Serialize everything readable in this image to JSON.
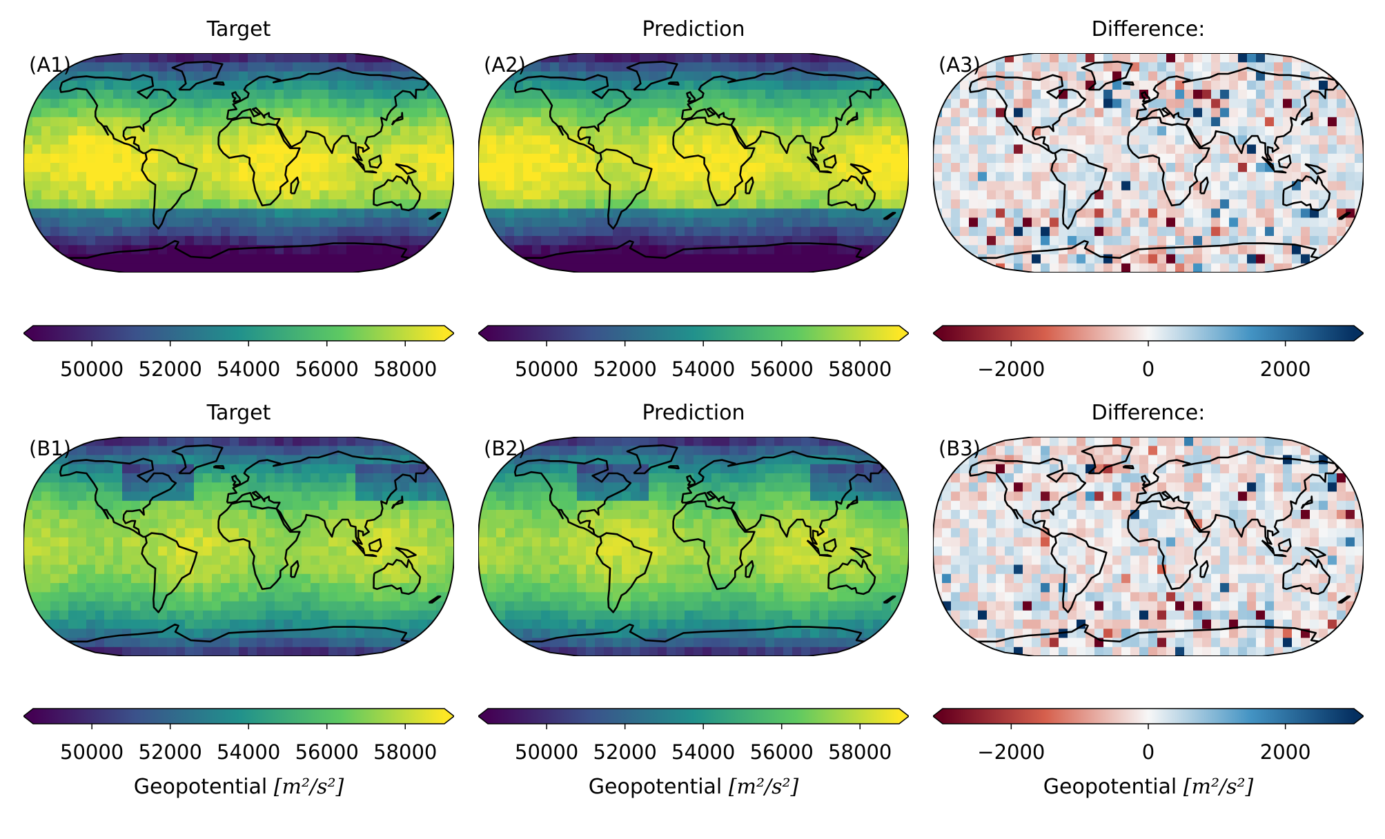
{
  "figure": {
    "rows": [
      {
        "panels": [
          {
            "label": "(A1)",
            "title": "Target",
            "kind": "field",
            "variant": 0
          },
          {
            "label": "(A2)",
            "title": "Prediction",
            "kind": "field",
            "variant": 1
          },
          {
            "label": "(A3)",
            "title": "Difference:",
            "kind": "diff",
            "variant": 2
          }
        ],
        "colorbars": [
          {
            "cmap": "viridis",
            "ticks": [
              "50000",
              "52000",
              "54000",
              "56000",
              "58000"
            ],
            "tick_values": [
              50000,
              52000,
              54000,
              56000,
              58000
            ],
            "range": [
              48500,
              59000
            ],
            "label": ""
          },
          {
            "cmap": "viridis",
            "ticks": [
              "50000",
              "52000",
              "54000",
              "56000",
              "58000"
            ],
            "tick_values": [
              50000,
              52000,
              54000,
              56000,
              58000
            ],
            "range": [
              48500,
              59000
            ],
            "label": ""
          },
          {
            "cmap": "RdBu",
            "ticks": [
              "−2000",
              "0",
              "2000"
            ],
            "tick_values": [
              -2000,
              0,
              2000
            ],
            "range": [
              -3000,
              3000
            ],
            "label": ""
          }
        ]
      },
      {
        "panels": [
          {
            "label": "(B1)",
            "title": "Target",
            "kind": "field",
            "variant": 3
          },
          {
            "label": "(B2)",
            "title": "Prediction",
            "kind": "field",
            "variant": 4
          },
          {
            "label": "(B3)",
            "title": "Difference:",
            "kind": "diff",
            "variant": 5
          }
        ],
        "colorbars": [
          {
            "cmap": "viridis",
            "ticks": [
              "50000",
              "52000",
              "54000",
              "56000",
              "58000"
            ],
            "tick_values": [
              50000,
              52000,
              54000,
              56000,
              58000
            ],
            "range": [
              48500,
              59000
            ],
            "label": "Geopotential"
          },
          {
            "cmap": "viridis",
            "ticks": [
              "50000",
              "52000",
              "54000",
              "56000",
              "58000"
            ],
            "tick_values": [
              50000,
              52000,
              54000,
              56000,
              58000
            ],
            "range": [
              48500,
              59000
            ],
            "label": "Geopotential"
          },
          {
            "cmap": "RdBu",
            "ticks": [
              "−2000",
              "0",
              "2000"
            ],
            "tick_values": [
              -2000,
              0,
              2000
            ],
            "range": [
              -3000,
              3000
            ],
            "label": "Geopotential"
          }
        ]
      }
    ],
    "unit_suffix": "[m²/s²]",
    "colors": {
      "viridis": [
        "#440154",
        "#3b528b",
        "#21918c",
        "#5ec962",
        "#fde725"
      ],
      "rdbu": [
        "#67001f",
        "#d6604d",
        "#f7f7f7",
        "#4393c3",
        "#053061"
      ],
      "coastline": "#000000"
    }
  }
}
